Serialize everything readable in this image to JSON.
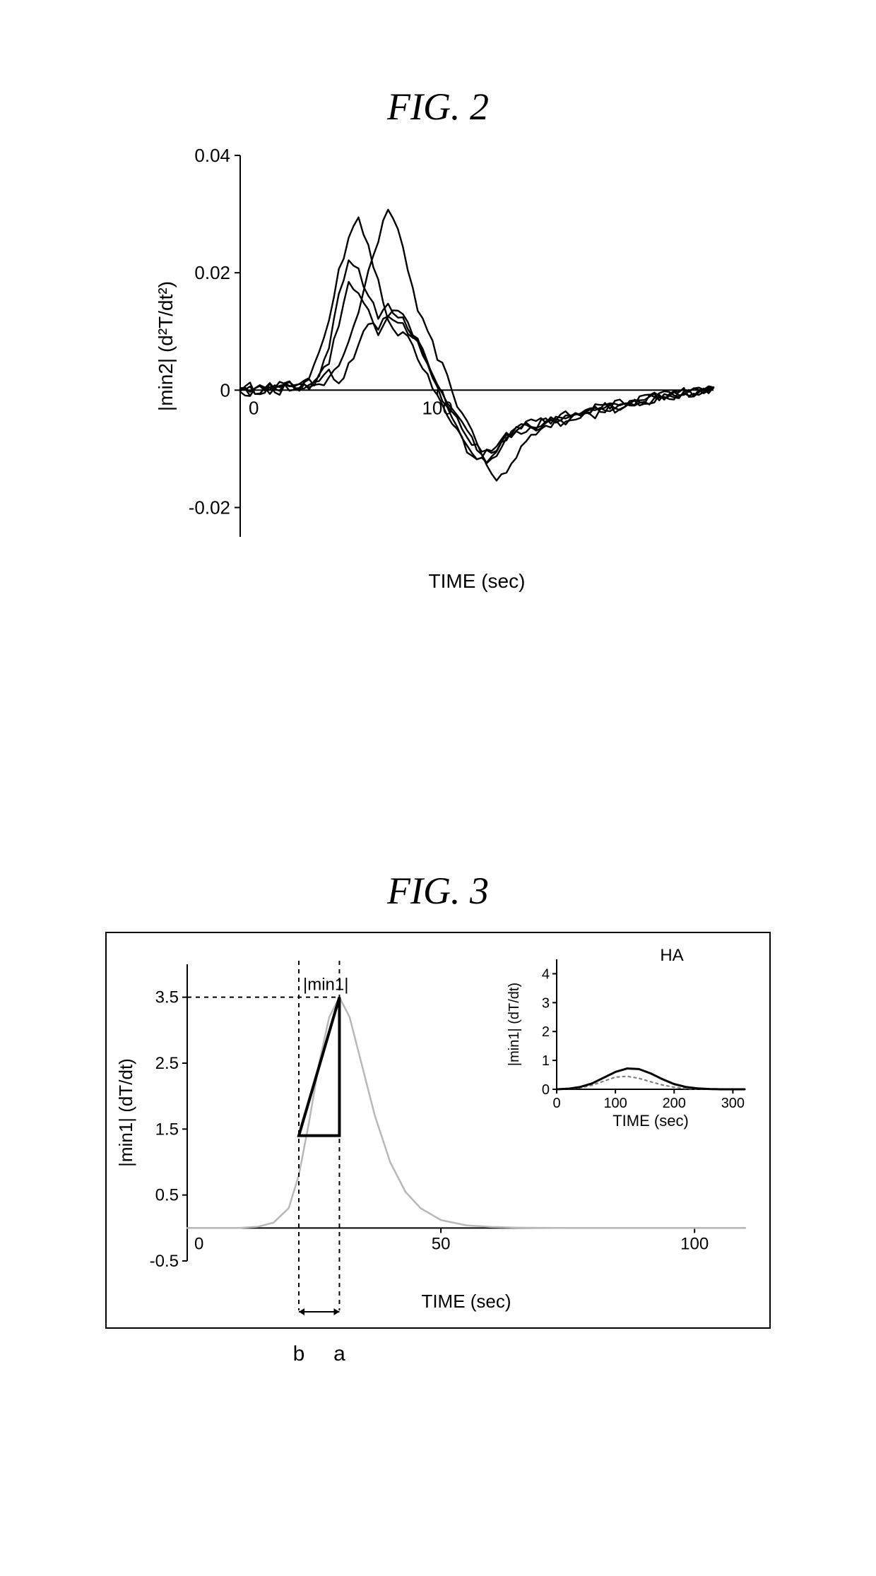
{
  "fig2": {
    "title": "FIG. 2",
    "title_fontsize": 54,
    "type": "line",
    "xlabel": "TIME (sec)",
    "ylabel": "|min2| (d²T/dt²)",
    "label_fontsize": 28,
    "tick_fontsize": 26,
    "xlim": [
      0,
      240
    ],
    "ylim": [
      -0.025,
      0.04
    ],
    "xticks": [
      0,
      100
    ],
    "yticks": [
      -0.02,
      0,
      0.02,
      0.04
    ],
    "background_color": "#ffffff",
    "axis_color": "#000000",
    "line_color": "#000000",
    "line_width": 2.4,
    "series": [
      {
        "x": [
          0,
          5,
          10,
          15,
          20,
          25,
          30,
          35,
          40,
          45,
          50,
          55,
          60,
          65,
          70,
          75,
          80,
          85,
          90,
          95,
          100,
          105,
          110,
          115,
          120,
          125,
          130,
          135,
          140,
          145,
          150,
          155,
          160,
          165,
          170,
          175,
          180,
          185,
          190,
          195,
          200,
          205,
          210,
          215,
          220,
          225,
          230,
          235,
          240
        ],
        "y": [
          0,
          0.001,
          -0.001,
          0.0005,
          0,
          0.0005,
          0.001,
          0.002,
          0.006,
          0.012,
          0.02,
          0.026,
          0.029,
          0.025,
          0.018,
          0.012,
          0.01,
          0.009,
          0.006,
          0.002,
          -0.001,
          -0.004,
          -0.007,
          -0.01,
          -0.012,
          -0.011,
          -0.009,
          -0.008,
          -0.007,
          -0.007,
          -0.006,
          -0.006,
          -0.005,
          -0.005,
          -0.004,
          -0.004,
          -0.003,
          -0.003,
          -0.0025,
          -0.002,
          -0.002,
          -0.0015,
          -0.001,
          -0.001,
          -0.0008,
          -0.0005,
          -0.0005,
          0,
          0
        ]
      },
      {
        "x": [
          0,
          5,
          10,
          15,
          20,
          25,
          30,
          35,
          40,
          45,
          50,
          55,
          60,
          65,
          70,
          75,
          80,
          85,
          90,
          95,
          100,
          105,
          110,
          115,
          120,
          125,
          130,
          135,
          140,
          145,
          150,
          155,
          160,
          165,
          170,
          175,
          180,
          185,
          190,
          195,
          200,
          205,
          210,
          215,
          220,
          225,
          230,
          235,
          240
        ],
        "y": [
          0,
          -0.001,
          0.001,
          0,
          0.0008,
          0,
          0.0005,
          0.001,
          0.003,
          0.008,
          0.016,
          0.022,
          0.02,
          0.016,
          0.013,
          0.014,
          0.013,
          0.011,
          0.008,
          0.004,
          0,
          -0.003,
          -0.006,
          -0.009,
          -0.011,
          -0.012,
          -0.01,
          -0.008,
          -0.007,
          -0.006,
          -0.006,
          -0.005,
          -0.005,
          -0.005,
          -0.004,
          -0.004,
          -0.003,
          -0.003,
          -0.003,
          -0.0025,
          -0.002,
          -0.0015,
          -0.001,
          -0.001,
          -0.001,
          -0.0005,
          -0.0005,
          0,
          0
        ]
      },
      {
        "x": [
          0,
          5,
          10,
          15,
          20,
          25,
          30,
          35,
          40,
          45,
          50,
          55,
          60,
          65,
          70,
          75,
          80,
          85,
          90,
          95,
          100,
          105,
          110,
          115,
          120,
          125,
          130,
          135,
          140,
          145,
          150,
          155,
          160,
          165,
          170,
          175,
          180,
          185,
          190,
          195,
          200,
          205,
          210,
          215,
          220,
          225,
          230,
          235,
          240
        ],
        "y": [
          0,
          0,
          0.001,
          -0.001,
          0.0005,
          0,
          0.0005,
          0.0005,
          0.001,
          0.002,
          0.004,
          0.008,
          0.014,
          0.02,
          0.026,
          0.031,
          0.028,
          0.02,
          0.014,
          0.01,
          0.006,
          0.002,
          -0.002,
          -0.005,
          -0.009,
          -0.013,
          -0.015,
          -0.014,
          -0.011,
          -0.009,
          -0.007,
          -0.006,
          -0.006,
          -0.005,
          -0.005,
          -0.004,
          -0.004,
          -0.003,
          -0.003,
          -0.0025,
          -0.002,
          -0.002,
          -0.0015,
          -0.001,
          -0.001,
          -0.0005,
          0,
          0,
          0
        ]
      },
      {
        "x": [
          0,
          5,
          10,
          15,
          20,
          25,
          30,
          35,
          40,
          45,
          50,
          55,
          60,
          65,
          70,
          75,
          80,
          85,
          90,
          95,
          100,
          105,
          110,
          115,
          120,
          125,
          130,
          135,
          140,
          145,
          150,
          155,
          160,
          165,
          170,
          175,
          180,
          185,
          190,
          195,
          200,
          205,
          210,
          215,
          220,
          225,
          230,
          235,
          240
        ],
        "y": [
          0,
          0.0005,
          -0.0005,
          0.001,
          0,
          0.001,
          0.0005,
          0.001,
          0.002,
          0.005,
          0.011,
          0.018,
          0.017,
          0.013,
          0.011,
          0.012,
          0.012,
          0.01,
          0.008,
          0.005,
          0.001,
          -0.002,
          -0.005,
          -0.008,
          -0.01,
          -0.011,
          -0.01,
          -0.008,
          -0.007,
          -0.006,
          -0.006,
          -0.005,
          -0.005,
          -0.005,
          -0.004,
          -0.004,
          -0.003,
          -0.003,
          -0.0025,
          -0.002,
          -0.002,
          -0.002,
          -0.0015,
          -0.001,
          -0.001,
          -0.0005,
          -0.0005,
          0,
          0
        ]
      },
      {
        "x": [
          0,
          5,
          10,
          15,
          20,
          25,
          30,
          35,
          40,
          45,
          50,
          55,
          60,
          65,
          70,
          75,
          80,
          85,
          90,
          95,
          100,
          105,
          110,
          115,
          120,
          125,
          130,
          135,
          140,
          145,
          150,
          155,
          160,
          165,
          170,
          175,
          180,
          185,
          190,
          195,
          200,
          205,
          210,
          215,
          220,
          225,
          230,
          235,
          240
        ],
        "y": [
          0,
          -0.0008,
          0.0008,
          0,
          0.001,
          -0.0005,
          0.001,
          0.001,
          0.002,
          0.003,
          0.0015,
          0.004,
          0.008,
          0.012,
          0.01,
          0.013,
          0.014,
          0.011,
          0.009,
          0.005,
          0.001,
          -0.002,
          -0.004,
          -0.007,
          -0.01,
          -0.012,
          -0.011,
          -0.009,
          -0.007,
          -0.006,
          -0.005,
          -0.005,
          -0.005,
          -0.004,
          -0.004,
          -0.0035,
          -0.003,
          -0.003,
          -0.0025,
          -0.002,
          -0.002,
          -0.002,
          -0.0015,
          -0.001,
          -0.001,
          -0.0005,
          -0.0005,
          0,
          0
        ]
      }
    ],
    "noise_amp": 0.0012
  },
  "fig3": {
    "title": "FIG. 3",
    "title_fontsize": 54,
    "type": "line",
    "xlabel": "TIME (sec)",
    "ylabel": "|min1| (dT/dt)",
    "label_fontsize": 26,
    "tick_fontsize": 24,
    "xlim": [
      0,
      110
    ],
    "ylim": [
      -0.5,
      4.0
    ],
    "xticks": [
      0,
      50,
      100
    ],
    "yticks": [
      -0.5,
      0.5,
      1.5,
      2.5,
      3.5
    ],
    "background_color": "#ffffff",
    "border_color": "#000000",
    "border_width": 2,
    "curve_color": "#b8b8b8",
    "curve_width": 2.5,
    "triangle_color": "#000000",
    "triangle_line_width": 4,
    "dash_color": "#000000",
    "dash_array": "6,6",
    "min1_label": "|min1|",
    "min1_value": 3.5,
    "a_label": "a",
    "b_label": "b",
    "a_x": 30,
    "b_x": 22,
    "triangle_base_y": 1.4,
    "triangle_peak_y": 3.5,
    "main_curve": {
      "x": [
        0,
        5,
        10,
        14,
        17,
        20,
        22,
        24,
        26,
        28,
        30,
        32,
        34,
        37,
        40,
        43,
        46,
        50,
        55,
        60,
        65,
        70,
        75,
        80,
        85,
        90,
        95,
        100,
        105,
        110
      ],
      "y": [
        0,
        0,
        0,
        0.02,
        0.08,
        0.3,
        0.8,
        1.6,
        2.5,
        3.2,
        3.5,
        3.2,
        2.6,
        1.7,
        1.0,
        0.55,
        0.3,
        0.12,
        0.04,
        0.015,
        0.005,
        0.002,
        0,
        0,
        0,
        0,
        0,
        0,
        0,
        0
      ]
    },
    "inset": {
      "label": "HA",
      "xlabel": "TIME (sec)",
      "ylabel": "|min1| (dT/dt)",
      "xlim": [
        0,
        320
      ],
      "ylim": [
        0,
        4.5
      ],
      "xticks": [
        0,
        100,
        200,
        300
      ],
      "yticks": [
        0,
        1,
        2,
        3,
        4
      ],
      "solid_color": "#000000",
      "solid_width": 3,
      "dotted_color": "#808080",
      "dotted_width": 2.2,
      "tick_fontsize": 20,
      "label_fontsize": 22,
      "curve_solid": {
        "x": [
          0,
          20,
          40,
          60,
          80,
          100,
          120,
          140,
          160,
          180,
          200,
          220,
          240,
          260,
          280,
          300,
          320
        ],
        "y": [
          0,
          0.02,
          0.08,
          0.2,
          0.4,
          0.6,
          0.72,
          0.7,
          0.55,
          0.35,
          0.18,
          0.08,
          0.03,
          0.01,
          0,
          0,
          0
        ]
      },
      "curve_dotted": {
        "x": [
          0,
          20,
          40,
          60,
          80,
          100,
          120,
          140,
          160,
          180,
          200,
          220,
          240,
          260,
          280,
          300,
          320
        ],
        "y": [
          0,
          0.01,
          0.05,
          0.14,
          0.28,
          0.42,
          0.45,
          0.38,
          0.26,
          0.15,
          0.07,
          0.03,
          0.01,
          0,
          0,
          0,
          0
        ]
      }
    }
  }
}
